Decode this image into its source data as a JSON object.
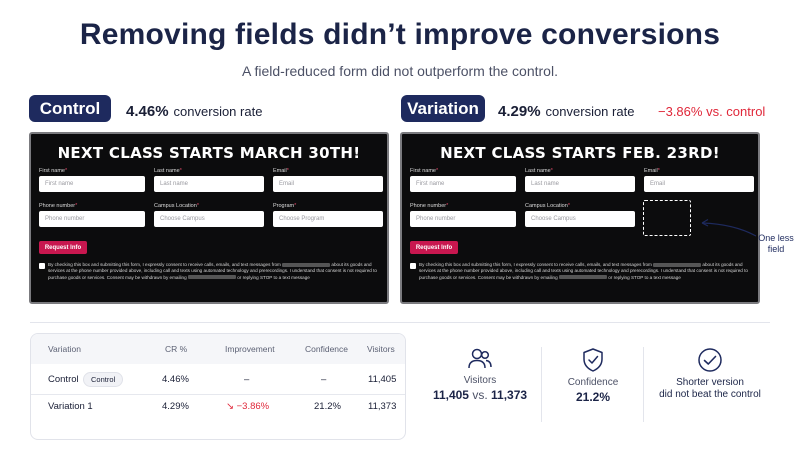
{
  "header": {
    "title": "Removing fields didn’t improve conversions",
    "subtitle": "A field-reduced form did not outperform the control."
  },
  "control": {
    "label": "Control",
    "rate": "4.46%",
    "rate_suffix": "conversion rate",
    "form": {
      "heading": "NEXT CLASS STARTS MARCH 30TH!",
      "fields": [
        {
          "label": "First name",
          "placeholder": "First name"
        },
        {
          "label": "Last name",
          "placeholder": "Last name"
        },
        {
          "label": "Email",
          "placeholder": "Email"
        },
        {
          "label": "Phone number",
          "placeholder": "Phone number"
        },
        {
          "label": "Campus Location",
          "placeholder": "Choose Campus"
        },
        {
          "label": "Program",
          "placeholder": "Choose Program"
        }
      ],
      "button": "Request Info",
      "consent_a": "By checking this box and submitting this form, I expressly consent to receive calls, emails, and text messages from",
      "consent_b": "about its goods and services at the phone number provided above, including call and texts using automated technology and prerecordings. I understand that consent is not required to purchase goods or services. Consent may be withdrawn by emailing",
      "consent_c": "or replying STOP to a text message"
    }
  },
  "variation": {
    "label": "Variation",
    "rate": "4.29%",
    "rate_suffix": "conversion rate",
    "delta": "−3.86% vs. control",
    "form": {
      "heading": "NEXT CLASS STARTS FEB. 23RD!",
      "fields": [
        {
          "label": "First name",
          "placeholder": "First name"
        },
        {
          "label": "Last name",
          "placeholder": "Last name"
        },
        {
          "label": "Email",
          "placeholder": "Email"
        },
        {
          "label": "Phone number",
          "placeholder": "Phone number"
        },
        {
          "label": "Campus Location",
          "placeholder": "Choose Campus"
        }
      ],
      "button": "Request Info",
      "consent_a": "By checking this box and submitting this form, I expressly consent to receive calls, emails, and text messages from",
      "consent_b": "about its goods and services at the phone number provided above, including call and texts using automated technology and prerecordings. I understand that consent is not required to purchase goods or services. Consent may be withdrawn by emailing",
      "consent_c": "or replying STOP to a text message"
    },
    "annotation": "One less field"
  },
  "table": {
    "headers": [
      "Variation",
      "CR %",
      "Improvement",
      "Confidence",
      "Visitors"
    ],
    "rows": [
      {
        "name": "Control",
        "badge": "Control",
        "cr": "4.46%",
        "improvement": "–",
        "confidence": "–",
        "visitors": "11,405"
      },
      {
        "name": "Variation 1",
        "cr": "4.29%",
        "improvement_arrow": "↘",
        "improvement": "−3.86%",
        "confidence": "21.2%",
        "visitors": "11,373"
      }
    ]
  },
  "stats": [
    {
      "icon": "users-icon",
      "label": "Visitors",
      "value_a": "11,405",
      "vs": "vs.",
      "value_b": "11,373"
    },
    {
      "icon": "shield-check-icon",
      "label": "Confidence",
      "value": "21.2%"
    },
    {
      "icon": "check-circle-icon",
      "line1": "Shorter version",
      "line2": "did not beat the control"
    }
  ],
  "colors": {
    "navy": "#1e2a5e",
    "negative": "#e0283a",
    "cta": "#c8174f",
    "form_bg": "#0c0c0d"
  }
}
